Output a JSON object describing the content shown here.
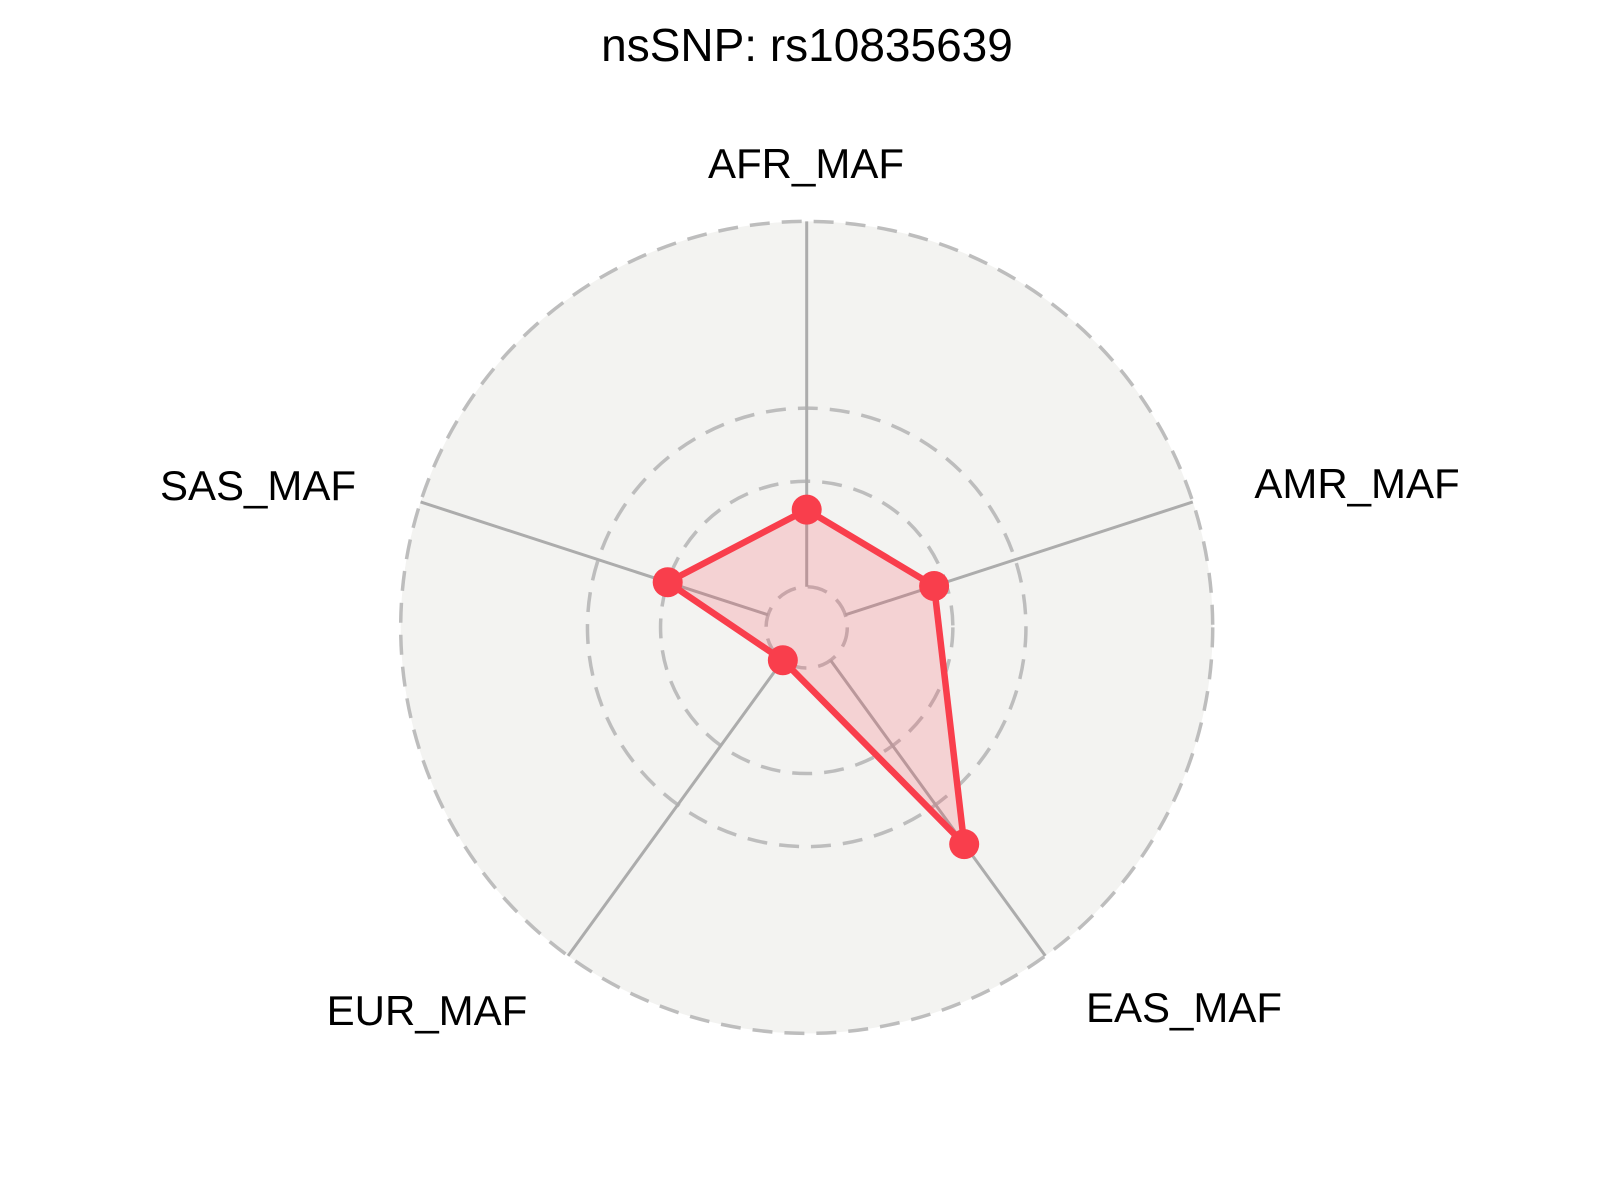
{
  "page": {
    "background": "#ffffff"
  },
  "chart_data": {
    "type": "radar",
    "title": "nsSNP: rs10835639",
    "axes": [
      "AFR_MAF",
      "AMR_MAF",
      "EAS_MAF",
      "EUR_MAF",
      "SAS_MAF"
    ],
    "series": [
      {
        "values": [
          0.145,
          0.165,
          0.33,
          0.05,
          0.18
        ]
      }
    ],
    "radial_range": [
      0,
      0.5
    ],
    "grid_rings": [
      0.05,
      0.18,
      0.27,
      0.5
    ],
    "start_angle_deg": 90,
    "direction": "clockwise",
    "legend": false,
    "grid": true,
    "grid_style": "dashed-circles",
    "colors": {
      "series_line": "#F93E4C",
      "series_fill": "rgba(249,62,76,0.18)",
      "grid_line": "#BDBDBD",
      "spoke_line": "#ACACAC",
      "disc_fill": "#F3F3F1",
      "title_text": "#000000",
      "label_text": "#000000"
    }
  }
}
